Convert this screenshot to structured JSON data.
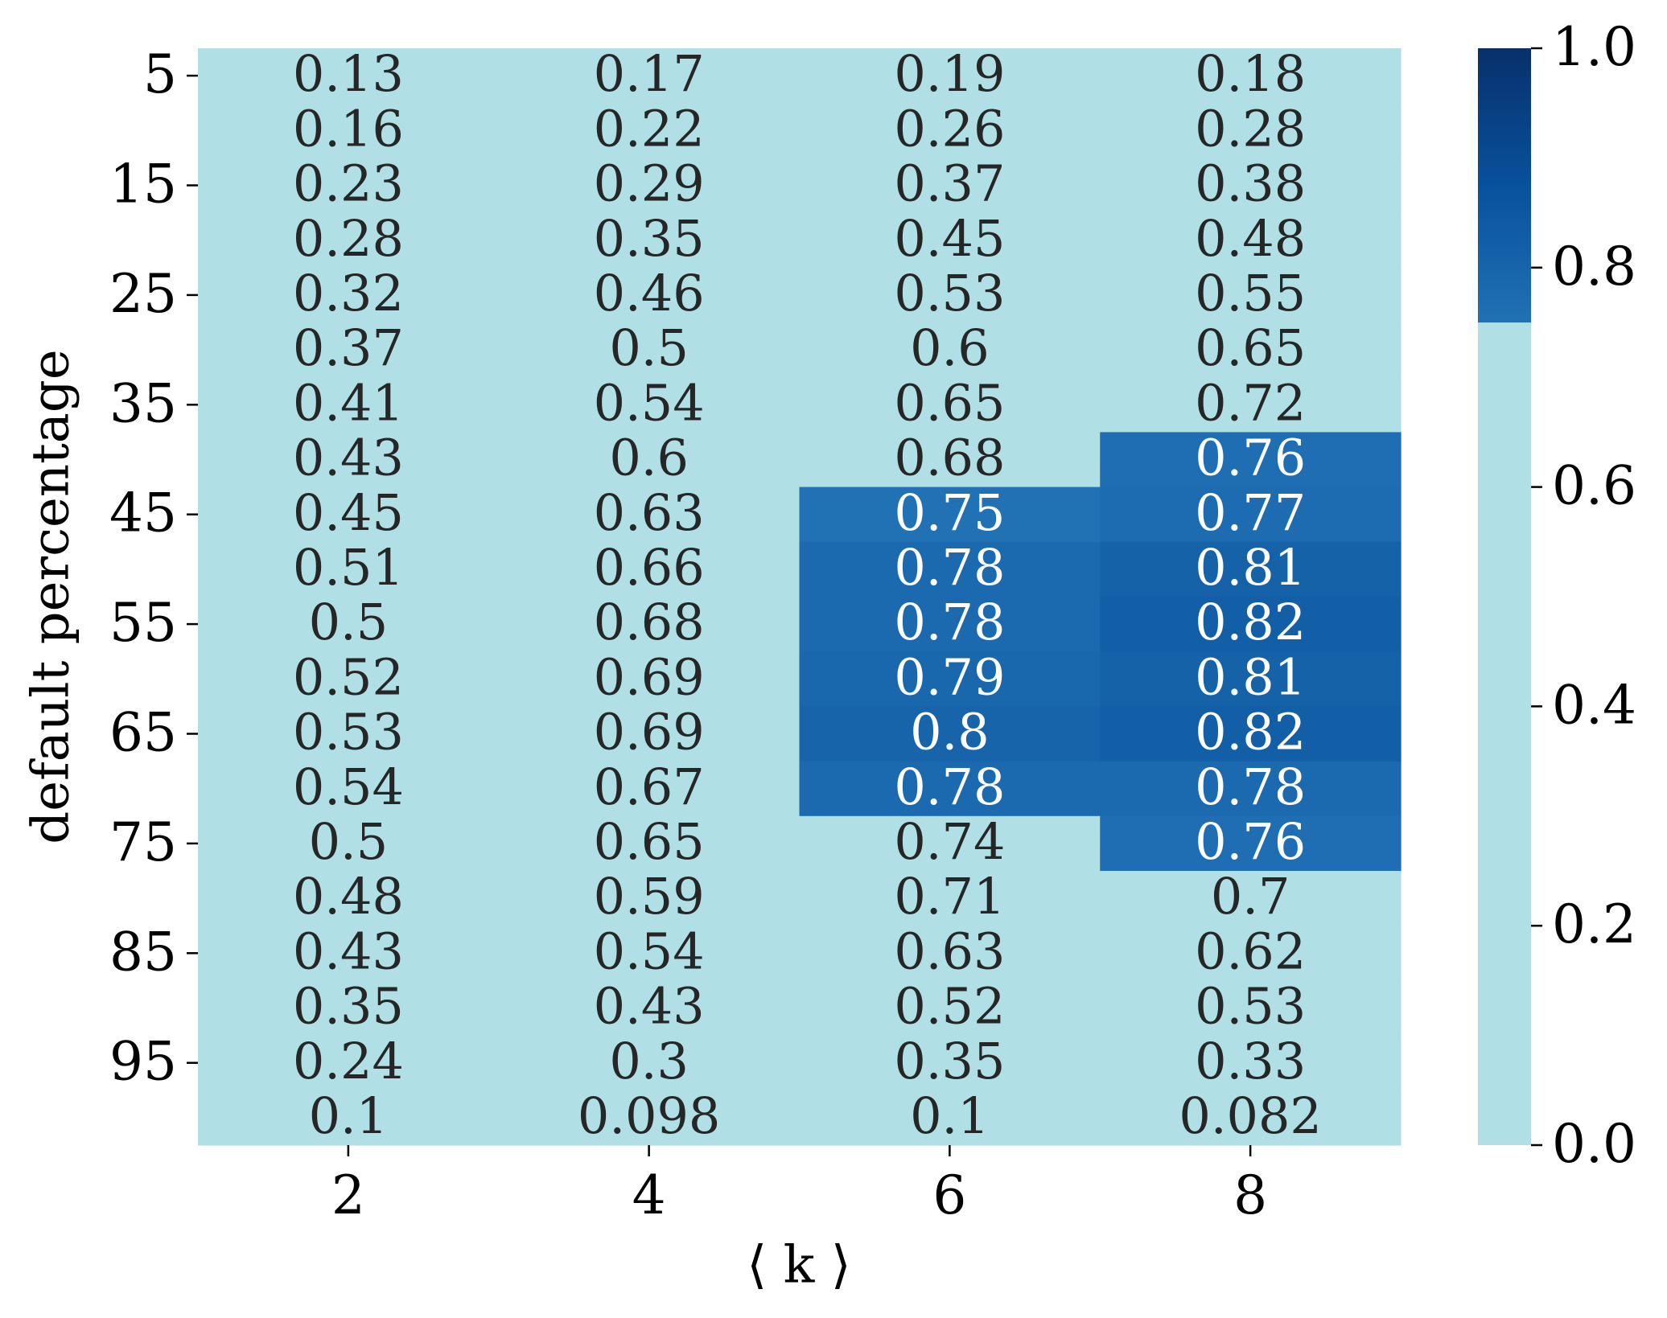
{
  "chart_data": {
    "type": "heatmap",
    "x_label": "⟨ k ⟩",
    "y_label": "default percentage",
    "x": [
      2,
      4,
      6,
      8
    ],
    "y": [
      5,
      null,
      15,
      null,
      25,
      null,
      35,
      null,
      45,
      null,
      55,
      null,
      65,
      null,
      75,
      null,
      85,
      null,
      95,
      null
    ],
    "values": [
      [
        0.13,
        0.17,
        0.19,
        0.18
      ],
      [
        0.16,
        0.22,
        0.26,
        0.28
      ],
      [
        0.23,
        0.29,
        0.37,
        0.38
      ],
      [
        0.28,
        0.35,
        0.45,
        0.48
      ],
      [
        0.32,
        0.46,
        0.53,
        0.55
      ],
      [
        0.37,
        0.5,
        0.6,
        0.65
      ],
      [
        0.41,
        0.54,
        0.65,
        0.72
      ],
      [
        0.43,
        0.6,
        0.68,
        0.76
      ],
      [
        0.45,
        0.63,
        0.75,
        0.77
      ],
      [
        0.51,
        0.66,
        0.78,
        0.81
      ],
      [
        0.5,
        0.68,
        0.78,
        0.82
      ],
      [
        0.52,
        0.69,
        0.79,
        0.81
      ],
      [
        0.53,
        0.69,
        0.8,
        0.82
      ],
      [
        0.54,
        0.67,
        0.78,
        0.78
      ],
      [
        0.5,
        0.65,
        0.74,
        0.76
      ],
      [
        0.48,
        0.59,
        0.71,
        0.7
      ],
      [
        0.43,
        0.54,
        0.63,
        0.62
      ],
      [
        0.35,
        0.43,
        0.52,
        0.53
      ],
      [
        0.24,
        0.3,
        0.35,
        0.33
      ],
      [
        0.1,
        0.098,
        0.1,
        0.082
      ]
    ],
    "colormap": {
      "threshold": 0.75,
      "under_color": "#b0dfe5",
      "stops": [
        [
          0.75,
          "#2171b5"
        ],
        [
          0.875,
          "#08519c"
        ],
        [
          1,
          "#08306b"
        ]
      ],
      "light_text": "#ffffff",
      "dark_text": "#262626"
    },
    "clim": [
      0,
      1
    ],
    "cticks": [
      {
        "value": 0,
        "label": "0.0"
      },
      0.2,
      0.4,
      0.6,
      0.8,
      {
        "value": 1,
        "label": "1.0"
      }
    ]
  }
}
